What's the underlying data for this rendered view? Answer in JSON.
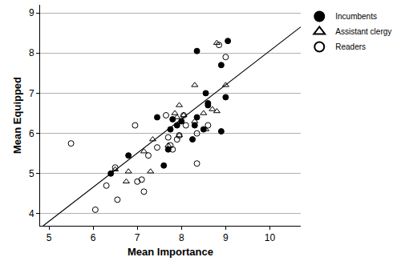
{
  "chart_data": {
    "type": "scatter",
    "x_label": "Mean Importance",
    "y_label": "Mean Equipped",
    "xlim": [
      4.8,
      10.7
    ],
    "ylim": [
      3.7,
      9.2
    ],
    "xticks": [
      5,
      6,
      7,
      8,
      9,
      10
    ],
    "yticks": [
      4,
      5,
      6,
      7,
      8,
      9
    ],
    "grid": "y",
    "legend": "top right",
    "series": [
      {
        "name": "Incumbents",
        "color": "#000000",
        "marker": "circle",
        "x": [
          6.4,
          6.8,
          7.45,
          7.6,
          7.7,
          7.75,
          7.8,
          7.9,
          8.0,
          8.25,
          8.3,
          8.35,
          8.35,
          8.5,
          8.55,
          8.6,
          8.6,
          8.9,
          8.9,
          9.0,
          9.05
        ],
        "values": [
          5.0,
          5.45,
          6.4,
          5.2,
          5.6,
          6.1,
          6.35,
          6.2,
          6.3,
          5.85,
          6.2,
          8.05,
          6.4,
          6.1,
          7.0,
          6.7,
          6.75,
          6.05,
          7.7,
          6.9,
          8.3
        ]
      },
      {
        "name": "Assistant clergy",
        "color": "#000000",
        "marker": "triangle-open",
        "x": [
          6.5,
          6.75,
          6.8,
          7.15,
          7.3,
          7.35,
          7.7,
          7.85,
          7.9,
          7.95,
          7.95,
          8.05,
          8.3,
          8.3,
          8.5,
          8.55,
          8.7,
          8.8,
          8.8,
          9.0
        ],
        "values": [
          5.1,
          4.8,
          5.05,
          5.55,
          5.05,
          5.85,
          5.7,
          6.5,
          6.4,
          6.7,
          5.95,
          6.45,
          6.3,
          7.2,
          6.5,
          6.1,
          6.6,
          6.55,
          8.25,
          7.2
        ]
      },
      {
        "name": "Readers",
        "color": "#000000",
        "marker": "circle-open",
        "x": [
          5.5,
          6.05,
          6.3,
          6.5,
          6.55,
          6.95,
          7.0,
          7.1,
          7.15,
          7.25,
          7.45,
          7.65,
          7.7,
          7.75,
          7.8,
          7.9,
          7.95,
          8.05,
          8.1,
          8.35,
          8.35,
          8.6,
          8.85,
          9.0
        ],
        "values": [
          5.75,
          4.1,
          4.7,
          5.15,
          4.35,
          6.2,
          4.8,
          4.85,
          4.55,
          5.45,
          5.65,
          6.45,
          5.9,
          5.7,
          5.6,
          5.85,
          5.95,
          6.45,
          6.2,
          5.25,
          6.0,
          6.2,
          8.2,
          7.9
        ]
      },
      {
        "type": "line",
        "color": "#000000",
        "line_style": "solid",
        "x": [
          4.87,
          10.7
        ],
        "values": [
          3.7,
          8.65
        ]
      }
    ]
  }
}
